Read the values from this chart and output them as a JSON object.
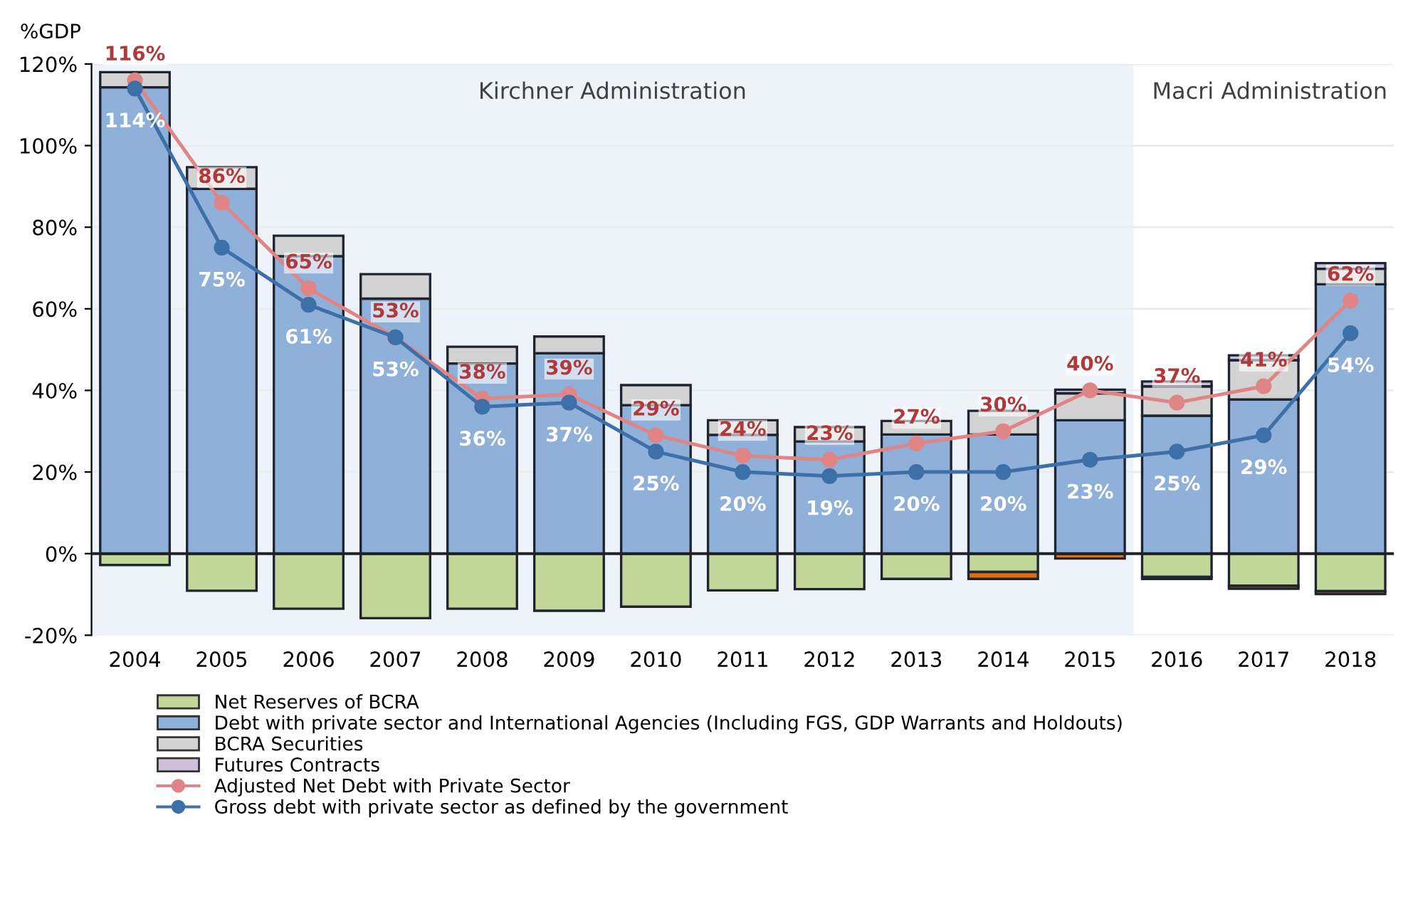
{
  "chart_data": {
    "type": "bar",
    "stacked": true,
    "ylabel": "%GDP",
    "categories": [
      "2004",
      "2005",
      "2006",
      "2007",
      "2008",
      "2009",
      "2010",
      "2011",
      "2012",
      "2013",
      "2014",
      "2015",
      "2016",
      "2017",
      "2018"
    ],
    "series": [
      {
        "name": "Net Reserves of BCRA",
        "color": "#c4d79b",
        "values": [
          -2.8,
          -9.1,
          -13.5,
          -15.8,
          -13.5,
          -14,
          -13,
          -9,
          -8.7,
          -6.2,
          -4.5,
          null,
          -5.7,
          -7.9,
          -9.2
        ]
      },
      {
        "color": "#e46c0a",
        "values": [
          null,
          null,
          null,
          null,
          null,
          null,
          null,
          null,
          null,
          null,
          -1.7,
          -1.2,
          -0.5,
          -0.7,
          -0.7
        ]
      },
      {
        "name": "Debt with private sector and International Agencies (Including FGS, GDP Warrants and Holdouts)",
        "color": "#8eb0d9",
        "values": [
          114.3,
          89.4,
          72.9,
          62.5,
          46.6,
          49.1,
          36.4,
          29.1,
          27.5,
          29.2,
          29.2,
          32.7,
          33.8,
          37.8,
          66
        ]
      },
      {
        "name": "BCRA Securities",
        "color": "#d3d3d3",
        "values": [
          3.7,
          5.3,
          5,
          6,
          4.1,
          4.1,
          4.9,
          3.6,
          3.5,
          3.3,
          5.8,
          6.6,
          7.2,
          9.6,
          3.8
        ]
      },
      {
        "name": "Futures Contracts",
        "color": "#ccc0da",
        "values": [
          null,
          null,
          null,
          null,
          null,
          null,
          null,
          null,
          null,
          null,
          null,
          0.9,
          1.2,
          1.2,
          1.4
        ]
      },
      {
        "name": "Adjusted Net Debt with Private Sector",
        "type": "line",
        "color": "#e08585",
        "values": [
          116,
          86,
          65,
          53,
          38,
          39,
          29,
          24,
          23,
          27,
          30,
          40,
          37,
          41,
          62
        ],
        "value_labels": [
          "116%",
          "86%",
          "65%",
          "53%",
          "38%",
          "39%",
          "29%",
          "24%",
          "23%",
          "27%",
          "30%",
          "40%",
          "37%",
          "41%",
          "62%"
        ]
      },
      {
        "name": "Gross debt with private sector as defined by the government",
        "type": "line",
        "color": "#3d6fa8",
        "values": [
          114,
          75,
          61,
          53,
          36,
          37,
          25,
          20,
          19,
          20,
          20,
          23,
          25,
          29,
          54
        ],
        "value_labels": [
          "114%",
          "75%",
          "61%",
          "53%",
          "36%",
          "37%",
          "25%",
          "20%",
          "19%",
          "20%",
          "20%",
          "23%",
          "25%",
          "29%",
          "54%"
        ]
      }
    ],
    "ylim": [
      -20,
      120
    ],
    "yticks": [
      {
        "value": -20,
        "label": "-20%"
      },
      {
        "value": 0,
        "label": "0%"
      },
      {
        "value": 20,
        "label": "20%"
      },
      {
        "value": 40,
        "label": "40%"
      },
      {
        "value": 60,
        "label": "60%"
      },
      {
        "value": 80,
        "label": "80%"
      },
      {
        "value": 100,
        "label": "100%"
      },
      {
        "value": 120,
        "label": "120%"
      }
    ],
    "bands": [
      {
        "axis": "x",
        "from": "2004",
        "to": "2015",
        "label": "Kirchner Administration",
        "color": "#eef2f9"
      }
    ],
    "annotations": [
      "Macri Administration"
    ],
    "grid": "y",
    "marker": "circle",
    "legend": "bottom"
  }
}
